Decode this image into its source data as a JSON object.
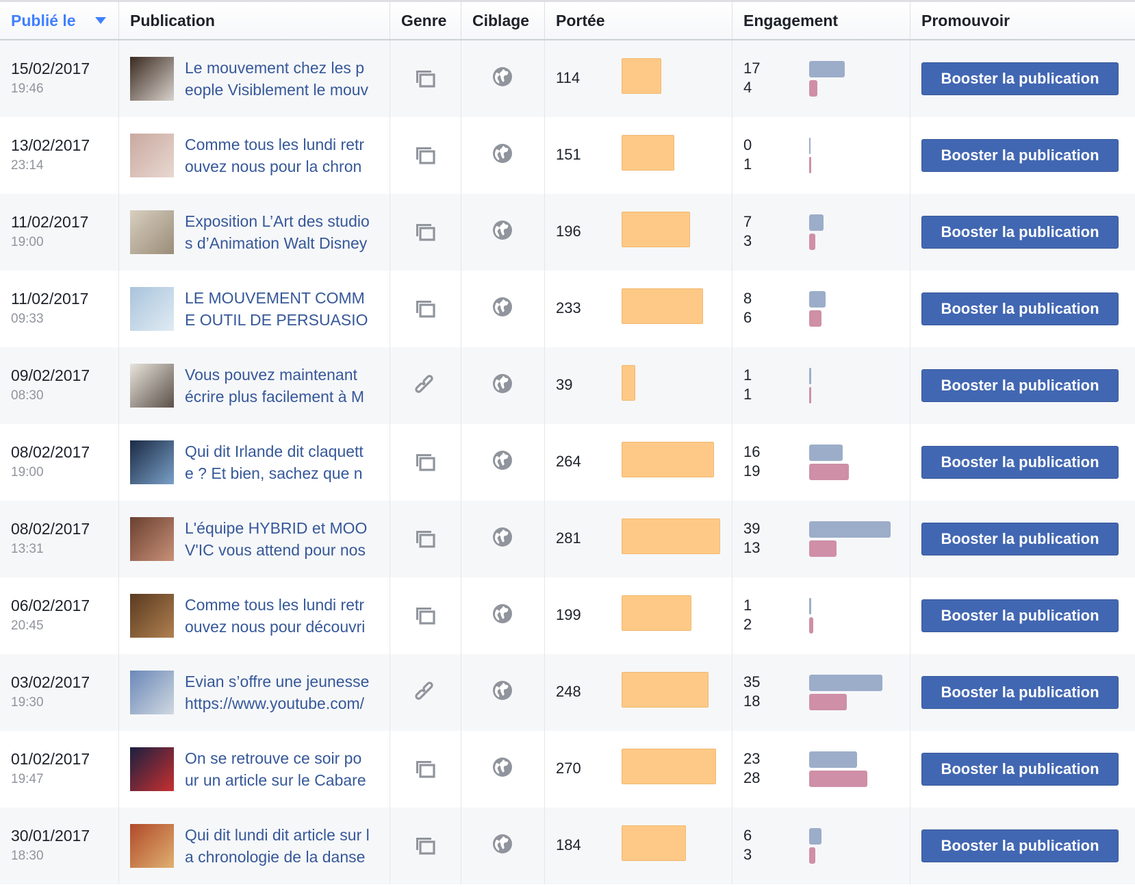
{
  "header": {
    "published": "Publié le",
    "publication": "Publication",
    "genre": "Genre",
    "targeting": "Ciblage",
    "reach": "Portée",
    "engagement": "Engagement",
    "promote": "Promouvoir"
  },
  "colors": {
    "reach_bar": "#fec986",
    "engagement_primary": "#9cadc9",
    "engagement_secondary": "#cf8fa6",
    "boost_button": "#4267b2",
    "link": "#365899",
    "sort_accent": "#4080ff"
  },
  "boost_label": "Booster la publication",
  "rows": [
    {
      "date": "15/02/2017",
      "time": "19:46",
      "text": "Le mouvement chez les p\neople Visiblement le mouv",
      "genre": "album-icon",
      "targeting": "globe-icon",
      "reach": "114",
      "eng1": "17",
      "eng2": "4",
      "thumb": [
        "#3a2a20",
        "#d8d2cc"
      ]
    },
    {
      "date": "13/02/2017",
      "time": "23:14",
      "text": "Comme tous les lundi retr\nouvez nous pour la chron",
      "genre": "album-icon",
      "targeting": "globe-icon",
      "reach": "151",
      "eng1": "0",
      "eng2": "1",
      "thumb": [
        "#c9a9a0",
        "#e8d8d0"
      ]
    },
    {
      "date": "11/02/2017",
      "time": "19:00",
      "text": "Exposition L’Art des studio\ns d’Animation Walt Disney",
      "genre": "album-icon",
      "targeting": "globe-icon",
      "reach": "196",
      "eng1": "7",
      "eng2": "3",
      "thumb": [
        "#d8cfbf",
        "#9a8c78"
      ]
    },
    {
      "date": "11/02/2017",
      "time": "09:33",
      "text": "LE MOUVEMENT COMM\nE OUTIL DE PERSUASIO",
      "genre": "album-icon",
      "targeting": "globe-icon",
      "reach": "233",
      "eng1": "8",
      "eng2": "6",
      "thumb": [
        "#a9c4dc",
        "#e0ebf3"
      ]
    },
    {
      "date": "09/02/2017",
      "time": "08:30",
      "text": "Vous pouvez maintenant\nécrire plus facilement à M",
      "genre": "link-icon",
      "targeting": "globe-icon",
      "reach": "39",
      "eng1": "1",
      "eng2": "1",
      "thumb": [
        "#e8e4dc",
        "#5a5048"
      ]
    },
    {
      "date": "08/02/2017",
      "time": "19:00",
      "text": "Qui dit Irlande dit claquett\ne ? Et bien, sachez que n",
      "genre": "album-icon",
      "targeting": "globe-icon",
      "reach": "264",
      "eng1": "16",
      "eng2": "19",
      "thumb": [
        "#1a2a44",
        "#7aa0c8"
      ]
    },
    {
      "date": "08/02/2017",
      "time": "13:31",
      "text": "L'équipe HYBRID et MOO\nV'IC vous attend pour nos",
      "genre": "album-icon",
      "targeting": "globe-icon",
      "reach": "281",
      "eng1": "39",
      "eng2": "13",
      "thumb": [
        "#6a4030",
        "#c89078"
      ]
    },
    {
      "date": "06/02/2017",
      "time": "20:45",
      "text": "Comme tous les lundi retr\nouvez nous pour découvri",
      "genre": "album-icon",
      "targeting": "globe-icon",
      "reach": "199",
      "eng1": "1",
      "eng2": "2",
      "thumb": [
        "#5a3a20",
        "#b08050"
      ]
    },
    {
      "date": "03/02/2017",
      "time": "19:30",
      "text": "Evian s’offre une jeunesse\nhttps://www.youtube.com/",
      "genre": "link-icon",
      "targeting": "globe-icon",
      "reach": "248",
      "eng1": "35",
      "eng2": "18",
      "thumb": [
        "#6a88b8",
        "#d0d8e0"
      ]
    },
    {
      "date": "01/02/2017",
      "time": "19:47",
      "text": "On se retrouve ce soir po\nur un article sur le Cabare",
      "genre": "album-icon",
      "targeting": "globe-icon",
      "reach": "270",
      "eng1": "23",
      "eng2": "28",
      "thumb": [
        "#1a2040",
        "#c83030"
      ]
    },
    {
      "date": "30/01/2017",
      "time": "18:30",
      "text": "Qui dit lundi dit article sur l\na chronologie de la danse",
      "genre": "album-icon",
      "targeting": "globe-icon",
      "reach": "184",
      "eng1": "6",
      "eng2": "3",
      "thumb": [
        "#b04a2a",
        "#e0b070"
      ]
    }
  ]
}
